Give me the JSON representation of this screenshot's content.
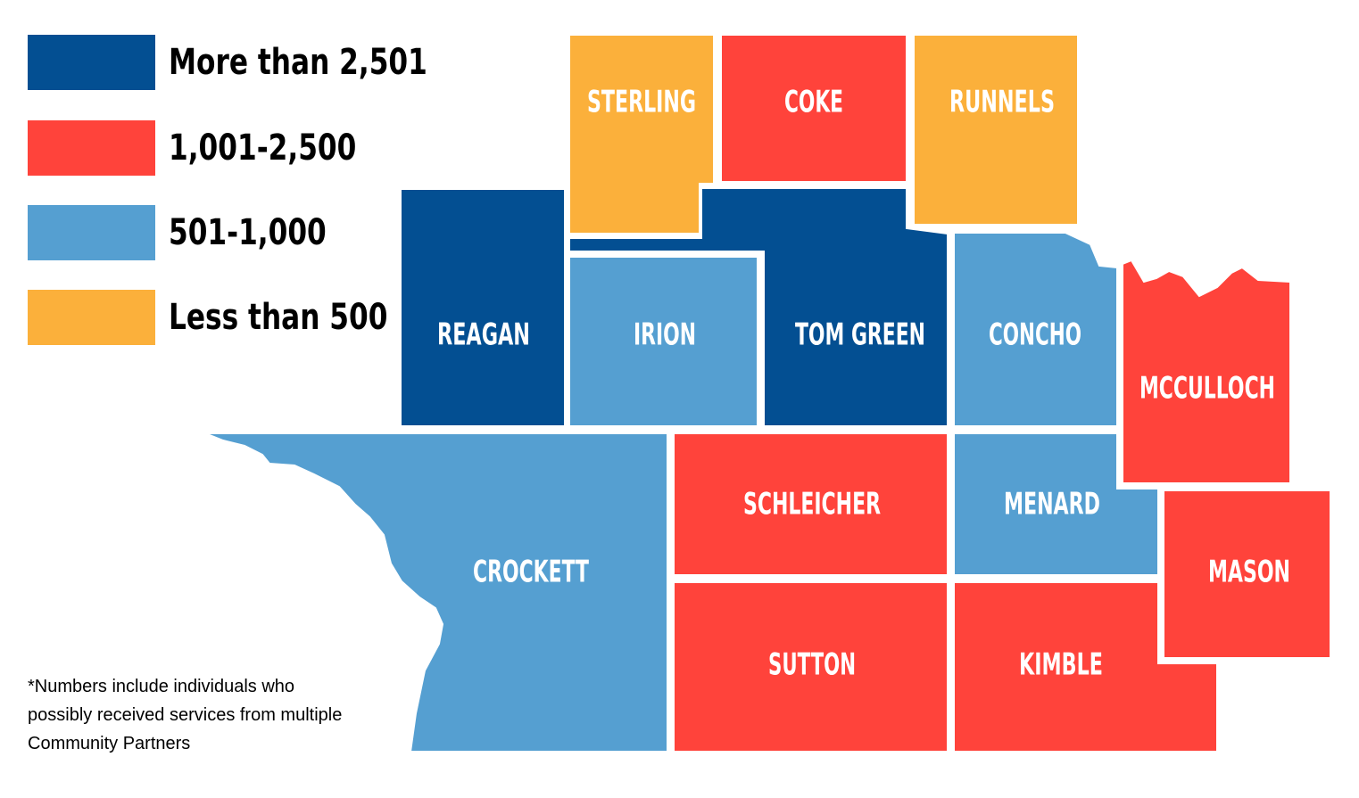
{
  "colors": {
    "more_than_2501": "#034f92",
    "1001_2500": "#ff433b",
    "501_1000": "#559fd1",
    "less_than_500": "#fbb03b"
  },
  "legend": [
    {
      "label": "More than 2,501",
      "color": "#034f92"
    },
    {
      "label": "1,001-2,500",
      "color": "#ff433b"
    },
    {
      "label": "501-1,000",
      "color": "#559fd1"
    },
    {
      "label": "Less than 500",
      "color": "#fbb03b"
    }
  ],
  "counties": {
    "sterling": {
      "label": "STERLING",
      "color": "#fbb03b"
    },
    "coke": {
      "label": "COKE",
      "color": "#ff433b"
    },
    "runnels": {
      "label": "RUNNELS",
      "color": "#fbb03b"
    },
    "reagan": {
      "label": "REAGAN",
      "color": "#034f92"
    },
    "irion": {
      "label": "IRION",
      "color": "#559fd1"
    },
    "tom_green": {
      "label": "TOM GREEN",
      "color": "#034f92"
    },
    "concho": {
      "label": "CONCHO",
      "color": "#559fd1"
    },
    "mcculloch": {
      "label": "MCCULLOCH",
      "color": "#ff433b"
    },
    "crockett": {
      "label": "CROCKETT",
      "color": "#559fd1"
    },
    "schleicher": {
      "label": "SCHLEICHER",
      "color": "#ff433b"
    },
    "menard": {
      "label": "MENARD",
      "color": "#559fd1"
    },
    "mason": {
      "label": "MASON",
      "color": "#ff433b"
    },
    "sutton": {
      "label": "SUTTON",
      "color": "#ff433b"
    },
    "kimble": {
      "label": "KIMBLE",
      "color": "#ff433b"
    }
  },
  "footnote": "*Numbers include individuals who possibly received services from multiple Community Partners"
}
